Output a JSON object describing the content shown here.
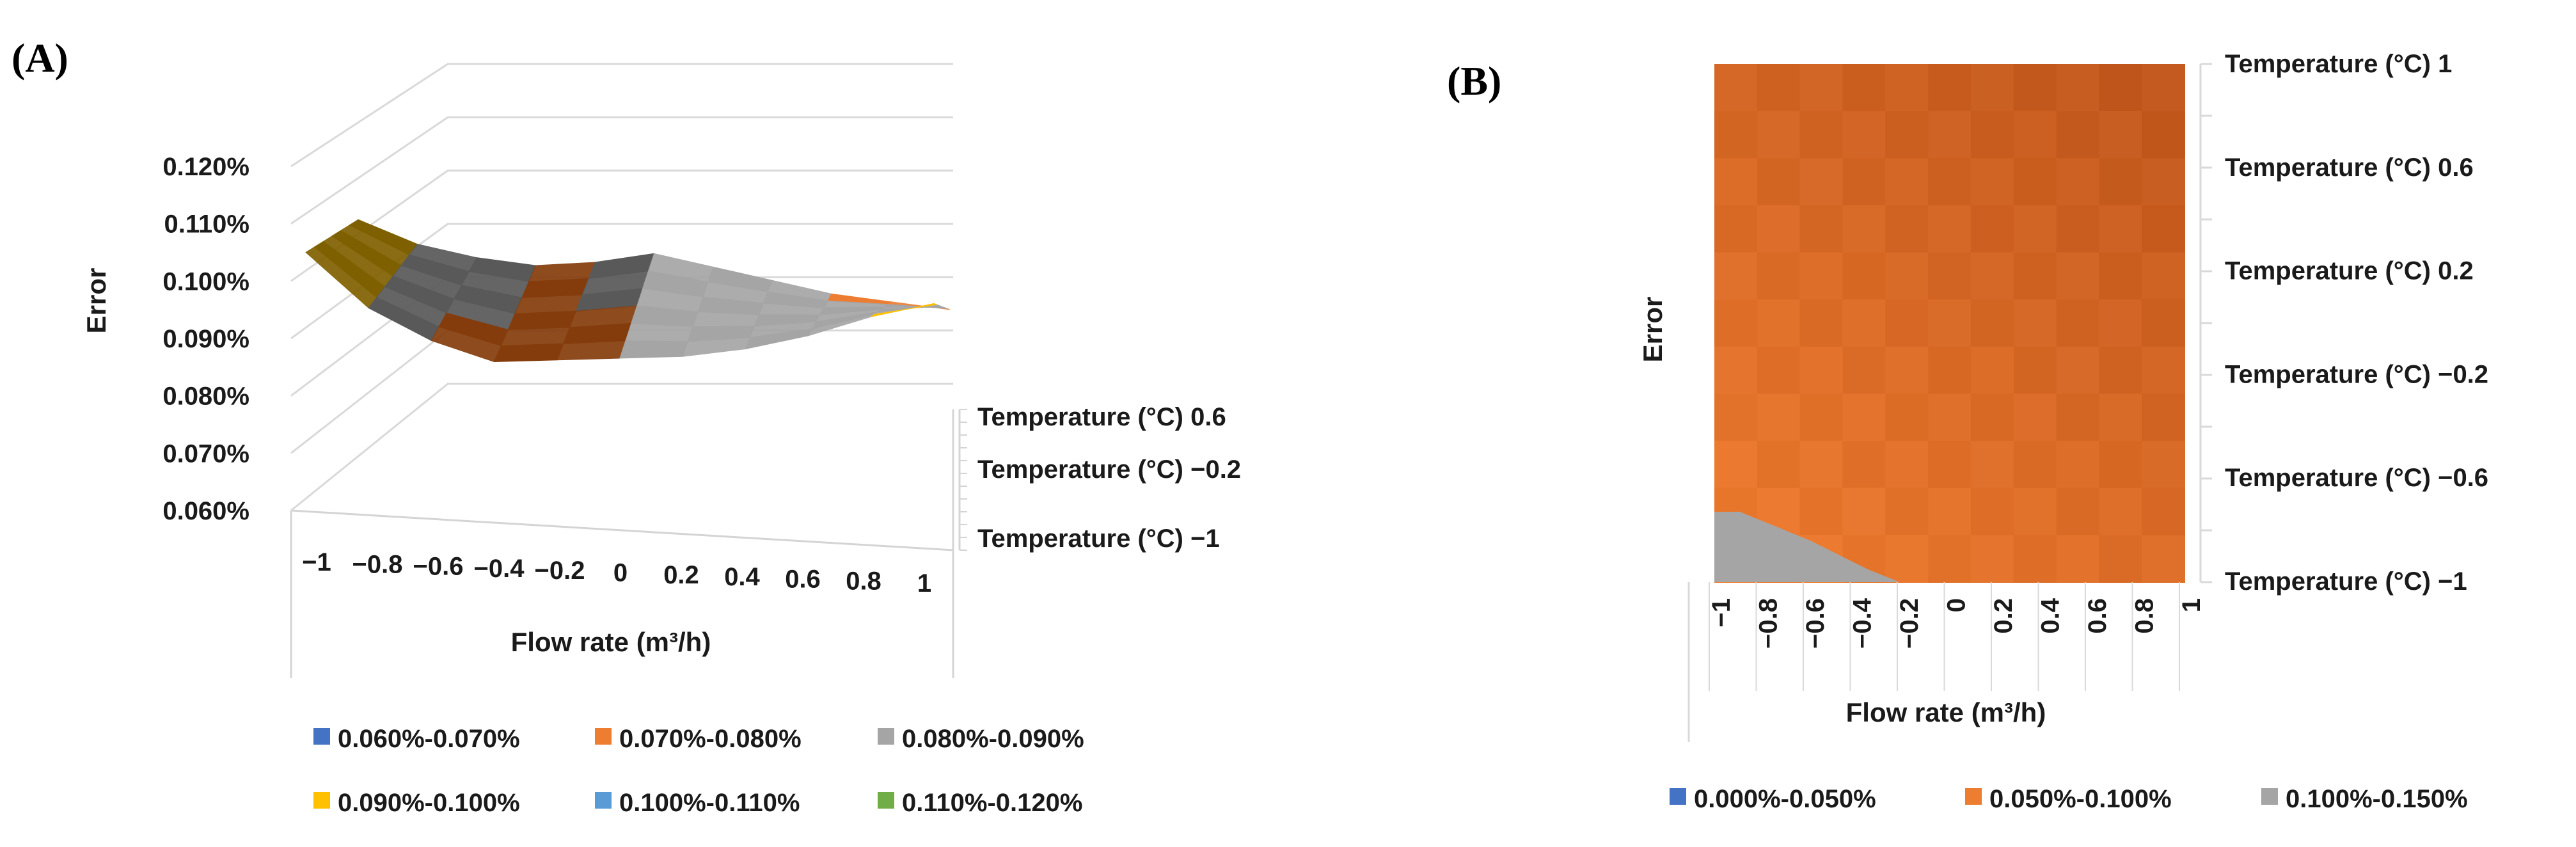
{
  "panel_labels": {
    "a": "(A)",
    "b": "(B)"
  },
  "chart_data": [
    {
      "type": "surface-3d",
      "panel": "(A)",
      "title": "",
      "zlabel": "Error",
      "xlabel": "Flow rate (m³/h)",
      "x_categories": [
        "−1",
        "−0.8",
        "−0.6",
        "−0.4",
        "−0.2",
        "0",
        "0.2",
        "0.4",
        "0.6",
        "0.8",
        "1"
      ],
      "depth_labels": [
        "Temperature (°C) 0.6",
        "Temperature (°C) −0.2",
        "Temperature (°C) −1"
      ],
      "z_ticks": [
        "0.060%",
        "0.070%",
        "0.080%",
        "0.090%",
        "0.100%",
        "0.110%",
        "0.120%"
      ],
      "zlim": [
        0.06,
        0.12
      ],
      "front_edge_values": [
        0.105,
        0.096,
        0.091,
        0.088,
        0.089,
        0.09,
        0.091,
        0.093,
        0.096,
        0.1,
        0.103
      ],
      "back_edge_values": [
        0.1,
        0.095,
        0.092,
        0.09,
        0.09,
        0.091,
        0.088,
        0.085,
        0.082,
        0.08,
        0.078
      ],
      "legend": [
        {
          "label": "0.060%-0.070%",
          "color": "#4472C4"
        },
        {
          "label": "0.070%-0.080%",
          "color": "#ED7D31"
        },
        {
          "label": "0.080%-0.090%",
          "color": "#A5A5A5"
        },
        {
          "label": "0.090%-0.100%",
          "color": "#FFC000"
        },
        {
          "label": "0.100%-0.110%",
          "color": "#5B9BD5"
        },
        {
          "label": "0.110%-0.120%",
          "color": "#70AD47"
        }
      ]
    },
    {
      "type": "heatmap",
      "panel": "(B)",
      "title": "",
      "ylabel": "Error",
      "xlabel": "Flow rate (m³/h)",
      "x_categories": [
        "−1",
        "−0.8",
        "−0.6",
        "−0.4",
        "−0.2",
        "0",
        "0.2",
        "0.4",
        "0.6",
        "0.8",
        "1"
      ],
      "y_labels": [
        "Temperature (°C) 1",
        "Temperature (°C) 0.6",
        "Temperature (°C) 0.2",
        "Temperature (°C) −0.2",
        "Temperature (°C) −0.6",
        "Temperature (°C) −1"
      ],
      "legend": [
        {
          "label": "0.000%-0.050%",
          "color": "#4472C4"
        },
        {
          "label": "0.050%-0.100%",
          "color": "#ED7D31"
        },
        {
          "label": "0.100%-0.150%",
          "color": "#A5A5A5"
        }
      ]
    }
  ]
}
